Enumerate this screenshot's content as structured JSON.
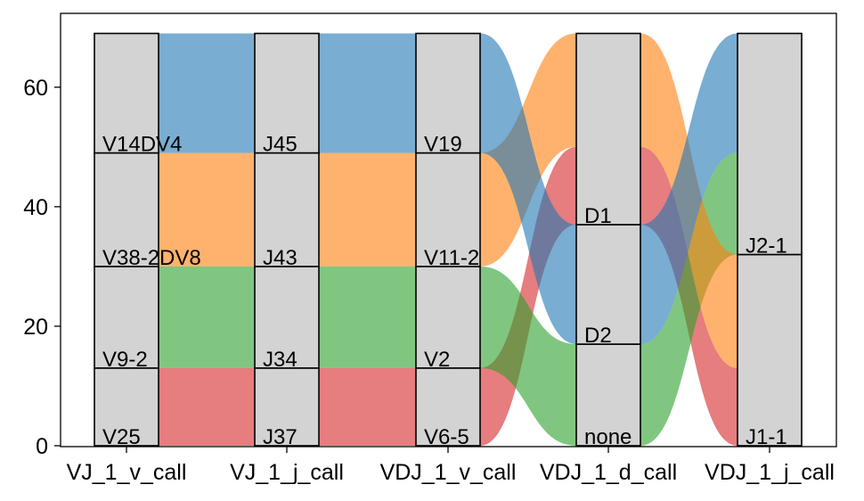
{
  "chart_data": {
    "type": "alluvial",
    "ylim": [
      0,
      69
    ],
    "yticks": [
      0,
      20,
      40,
      60
    ],
    "axes": [
      {
        "name": "VJ_1_v_call",
        "segments": [
          {
            "label": "V25",
            "from": 0,
            "to": 13
          },
          {
            "label": "V9-2",
            "from": 13,
            "to": 30
          },
          {
            "label": "V38-2DV8",
            "from": 30,
            "to": 49
          },
          {
            "label": "V14DV4",
            "from": 49,
            "to": 69
          }
        ]
      },
      {
        "name": "VJ_1_j_call",
        "segments": [
          {
            "label": "J37",
            "from": 0,
            "to": 13
          },
          {
            "label": "J34",
            "from": 13,
            "to": 30
          },
          {
            "label": "J43",
            "from": 30,
            "to": 49
          },
          {
            "label": "J45",
            "from": 49,
            "to": 69
          }
        ]
      },
      {
        "name": "VDJ_1_v_call",
        "segments": [
          {
            "label": "V6-5",
            "from": 0,
            "to": 13
          },
          {
            "label": "V2",
            "from": 13,
            "to": 30
          },
          {
            "label": "V11-2",
            "from": 30,
            "to": 49
          },
          {
            "label": "V19",
            "from": 49,
            "to": 69
          }
        ]
      },
      {
        "name": "VDJ_1_d_call",
        "segments": [
          {
            "label": "none",
            "from": 0,
            "to": 17
          },
          {
            "label": "D2",
            "from": 17,
            "to": 37
          },
          {
            "label": "D1",
            "from": 37,
            "to": 69
          }
        ]
      },
      {
        "name": "VDJ_1_j_call",
        "segments": [
          {
            "label": "J1-1",
            "from": 0,
            "to": 32
          },
          {
            "label": "J2-1",
            "from": 32,
            "to": 69
          }
        ]
      }
    ],
    "flows": [
      {
        "gap": 0,
        "color": "#1f77b4",
        "from": [
          49,
          69
        ],
        "to": [
          49,
          69
        ]
      },
      {
        "gap": 0,
        "color": "#ff7f0e",
        "from": [
          30,
          49
        ],
        "to": [
          30,
          49
        ]
      },
      {
        "gap": 0,
        "color": "#2ca02c",
        "from": [
          13,
          30
        ],
        "to": [
          13,
          30
        ]
      },
      {
        "gap": 0,
        "color": "#d62728",
        "from": [
          0,
          13
        ],
        "to": [
          0,
          13
        ]
      },
      {
        "gap": 1,
        "color": "#1f77b4",
        "from": [
          49,
          69
        ],
        "to": [
          49,
          69
        ]
      },
      {
        "gap": 1,
        "color": "#ff7f0e",
        "from": [
          30,
          49
        ],
        "to": [
          30,
          49
        ]
      },
      {
        "gap": 1,
        "color": "#2ca02c",
        "from": [
          13,
          30
        ],
        "to": [
          13,
          30
        ]
      },
      {
        "gap": 1,
        "color": "#d62728",
        "from": [
          0,
          13
        ],
        "to": [
          0,
          13
        ]
      },
      {
        "gap": 2,
        "color": "#d62728",
        "from": [
          0,
          13
        ],
        "to": [
          37,
          50
        ]
      },
      {
        "gap": 2,
        "color": "#2ca02c",
        "from": [
          13,
          30
        ],
        "to": [
          0,
          17
        ]
      },
      {
        "gap": 2,
        "color": "#ff7f0e",
        "from": [
          30,
          49
        ],
        "to": [
          50,
          69
        ]
      },
      {
        "gap": 2,
        "color": "#1f77b4",
        "from": [
          49,
          69
        ],
        "to": [
          17,
          37
        ]
      },
      {
        "gap": 3,
        "color": "#d62728",
        "from": [
          37,
          50
        ],
        "to": [
          0,
          13
        ]
      },
      {
        "gap": 3,
        "color": "#2ca02c",
        "from": [
          0,
          17
        ],
        "to": [
          32,
          49
        ]
      },
      {
        "gap": 3,
        "color": "#ff7f0e",
        "from": [
          50,
          69
        ],
        "to": [
          13,
          32
        ]
      },
      {
        "gap": 3,
        "color": "#1f77b4",
        "from": [
          17,
          37
        ],
        "to": [
          49,
          69
        ]
      }
    ]
  }
}
